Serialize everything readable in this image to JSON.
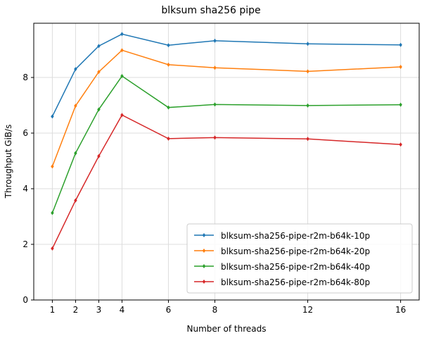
{
  "chart_data": {
    "type": "line",
    "title": "blksum sha256 pipe",
    "xlabel": "Number of threads",
    "ylabel": "Throughput GiB/s",
    "x": [
      1,
      2,
      3,
      4,
      6,
      8,
      12,
      16
    ],
    "x_ticks": [
      "1",
      "2",
      "3",
      "4",
      "6",
      "8",
      "12",
      "16"
    ],
    "xlim": [
      0.2,
      16.8
    ],
    "ylim": [
      0,
      9.95
    ],
    "y_ticks": [
      "0",
      "2",
      "4",
      "6",
      "8"
    ],
    "grid": true,
    "legend_position": "lower-right",
    "series": [
      {
        "name": "blksum-sha256-pipe-r2m-b64k-10p",
        "color": "#1f77b4",
        "values": [
          6.6,
          8.3,
          9.13,
          9.56,
          9.16,
          9.32,
          9.21,
          9.17
        ]
      },
      {
        "name": "blksum-sha256-pipe-r2m-b64k-20p",
        "color": "#ff7f0e",
        "values": [
          4.8,
          6.98,
          8.2,
          8.98,
          8.46,
          8.35,
          8.22,
          8.38
        ]
      },
      {
        "name": "blksum-sha256-pipe-r2m-b64k-40p",
        "color": "#2ca02c",
        "values": [
          3.13,
          5.28,
          6.85,
          8.05,
          6.92,
          7.03,
          6.99,
          7.02
        ]
      },
      {
        "name": "blksum-sha256-pipe-r2m-b64k-80p",
        "color": "#d62728",
        "values": [
          1.85,
          3.58,
          5.17,
          6.65,
          5.8,
          5.84,
          5.79,
          5.59
        ]
      }
    ]
  }
}
